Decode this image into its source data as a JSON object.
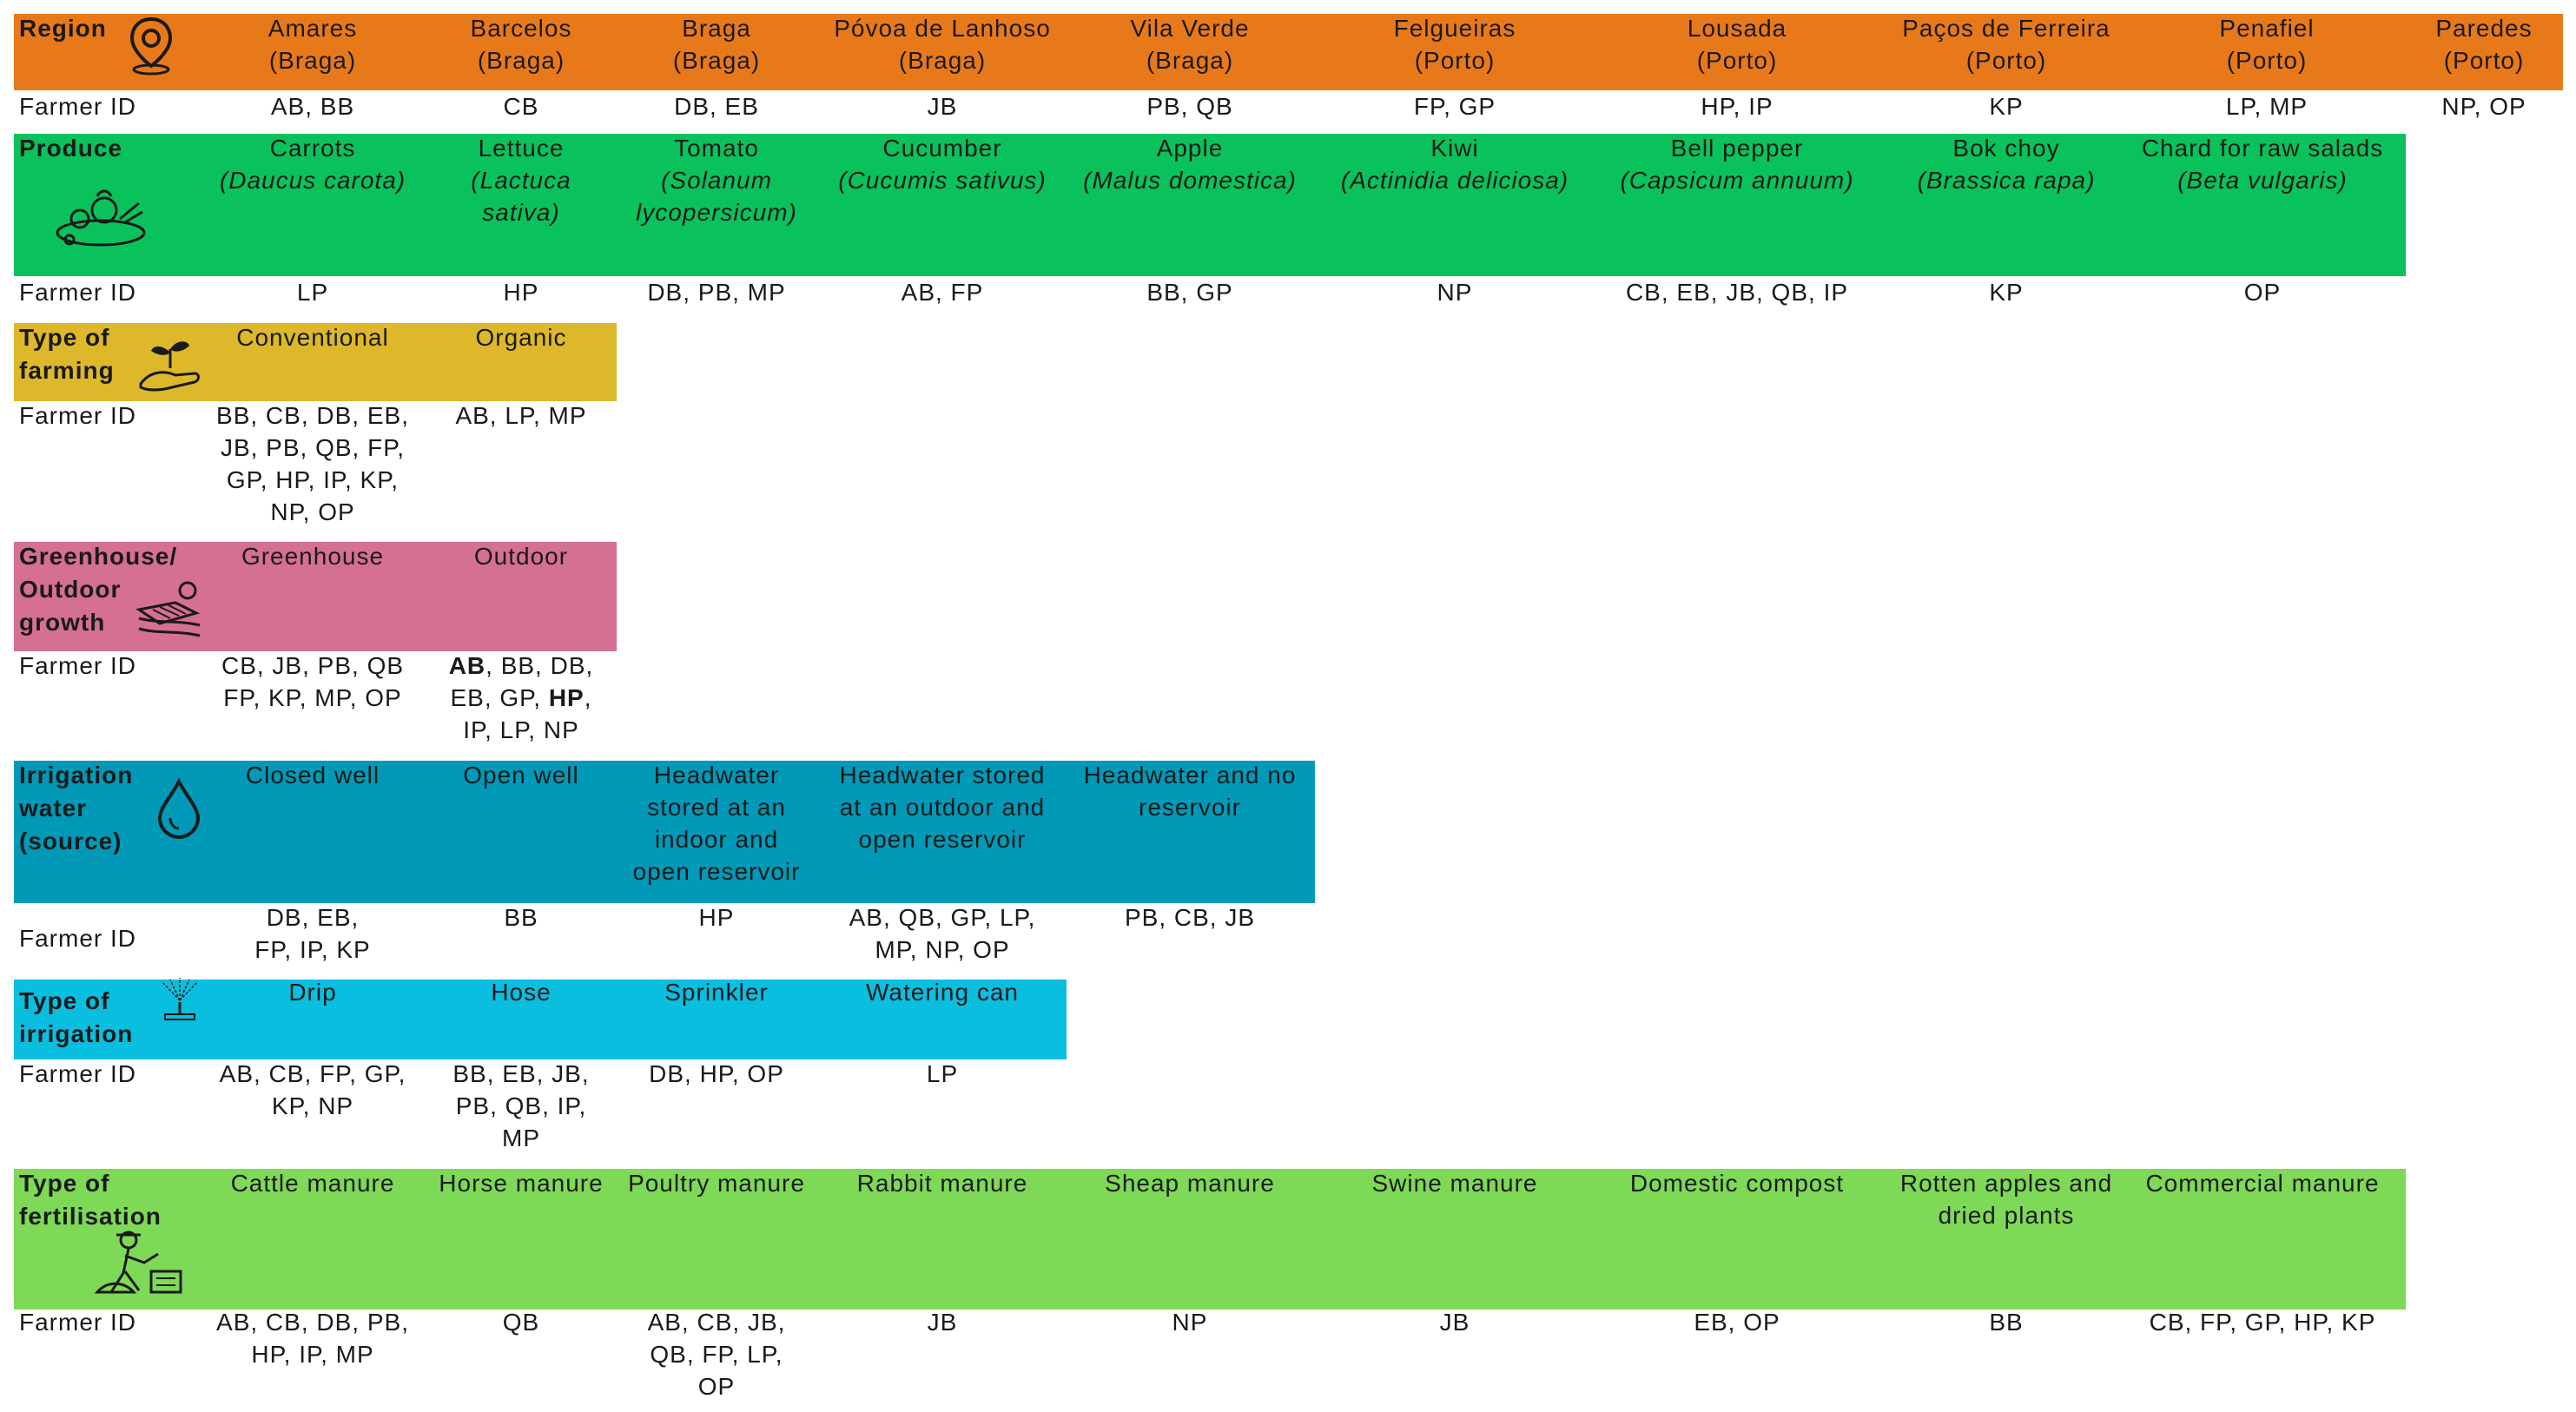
{
  "colors": {
    "region": "#E8791A",
    "produce": "#0AC25C",
    "farming": "#DDB82A",
    "growth": "#D57092",
    "water": "#0099B8",
    "irrigation": "#0ABEE0",
    "fertilisation": "#7ED957"
  },
  "farmer_id_label": "Farmer ID",
  "sections": [
    {
      "key": "region",
      "header": "Region",
      "icon": "location-pin-icon",
      "headers": [
        [
          "Amares",
          "(Braga)"
        ],
        [
          "Barcelos",
          "(Braga)"
        ],
        [
          "Braga",
          "(Braga)"
        ],
        [
          "Póvoa de Lanhoso",
          "(Braga)"
        ],
        [
          "Vila Verde",
          "(Braga)"
        ],
        [
          "Felgueiras",
          "(Porto)"
        ],
        [
          "Lousada",
          "(Porto)"
        ],
        [
          "Paços de Ferreira",
          "(Porto)"
        ],
        [
          "Penafiel",
          "(Porto)"
        ],
        [
          "Paredes",
          "(Porto)"
        ]
      ],
      "farmer_ids": [
        "AB, BB",
        "CB",
        "DB, EB",
        "JB",
        "PB, QB",
        "FP, GP",
        "HP, IP",
        "KP",
        "LP, MP",
        "NP, OP"
      ]
    },
    {
      "key": "produce",
      "header": "Produce",
      "icon": "vegetables-icon",
      "headers": [
        [
          "Carrots",
          "(Daucus carota)"
        ],
        [
          "Lettuce",
          "(Lactuca",
          "sativa)"
        ],
        [
          "Tomato",
          "(Solanum",
          "lycopersicum)"
        ],
        [
          "Cucumber",
          "(Cucumis sativus)"
        ],
        [
          "Apple",
          "(Malus domestica)"
        ],
        [
          "Kiwi",
          "(Actinidia deliciosa)"
        ],
        [
          "Bell pepper",
          "(Capsicum annuum)"
        ],
        [
          "Bok choy",
          "(Brassica rapa)"
        ],
        [
          "Chard for raw salads",
          "(Beta vulgaris)"
        ]
      ],
      "farmer_ids": [
        "LP",
        "HP",
        "DB, PB, MP",
        "AB, FP",
        "BB, GP",
        "NP",
        "CB, EB, JB, QB, IP",
        "KP",
        "OP"
      ]
    },
    {
      "key": "farming",
      "header": [
        "Type of",
        "farming"
      ],
      "icon": "seedling-hand-icon",
      "headers": [
        [
          "Conventional"
        ],
        [
          "Organic"
        ]
      ],
      "farmer_ids": [
        [
          "BB, CB, DB, EB,",
          "JB, PB, QB, FP,",
          "GP, HP, IP, KP,",
          "NP, OP"
        ],
        [
          "AB, LP, MP"
        ]
      ]
    },
    {
      "key": "growth",
      "header": [
        "Greenhouse/",
        "Outdoor",
        "growth"
      ],
      "icon": "field-sun-icon",
      "headers": [
        [
          "Greenhouse"
        ],
        [
          "Outdoor"
        ]
      ],
      "farmer_ids": [
        [
          "CB, JB, PB, QB",
          "FP, KP, MP, OP"
        ],
        [
          "AB",
          ", BB, DB,",
          "EB, GP, ",
          "HP",
          ",",
          "IP, LP, NP"
        ]
      ]
    },
    {
      "key": "water",
      "header": [
        "Irrigation",
        "water",
        "(source)"
      ],
      "icon": "water-drop-icon",
      "headers": [
        [
          "Closed well"
        ],
        [
          "Open well"
        ],
        [
          "Headwater",
          "stored at an",
          "indoor and",
          "open reservoir"
        ],
        [
          "Headwater stored",
          "at an outdoor and",
          "open reservoir"
        ],
        [
          "Headwater and no",
          "reservoir"
        ]
      ],
      "farmer_ids": [
        [
          "DB, EB,",
          "FP, IP, KP"
        ],
        [
          "BB"
        ],
        [
          "HP"
        ],
        [
          "AB, QB, GP, LP,",
          "MP, NP, OP"
        ],
        [
          "PB, CB, JB"
        ]
      ]
    },
    {
      "key": "irrigation",
      "header": [
        "Type of",
        "irrigation"
      ],
      "icon": "sprinkler-icon",
      "headers": [
        [
          "Drip"
        ],
        [
          "Hose"
        ],
        [
          "Sprinkler"
        ],
        [
          "Watering can"
        ]
      ],
      "farmer_ids": [
        [
          "AB, CB, FP, GP,",
          "KP, NP"
        ],
        [
          "BB, EB, JB,",
          "PB, QB, IP,",
          "MP"
        ],
        [
          "DB, HP, OP"
        ],
        [
          "LP"
        ]
      ]
    },
    {
      "key": "fertilisation",
      "header": [
        "Type of",
        "fertilisation"
      ],
      "icon": "farmer-compost-icon",
      "headers": [
        [
          "Cattle manure"
        ],
        [
          "Horse manure"
        ],
        [
          "Poultry manure"
        ],
        [
          "Rabbit manure"
        ],
        [
          "Sheap manure"
        ],
        [
          "Swine manure"
        ],
        [
          "Domestic compost"
        ],
        [
          "Rotten apples and",
          "dried plants"
        ],
        [
          "Commercial manure"
        ]
      ],
      "farmer_ids": [
        [
          "AB, CB, DB, PB,",
          "HP, IP, MP"
        ],
        [
          "QB"
        ],
        [
          "AB, CB, JB,",
          "QB, FP, LP,",
          "OP"
        ],
        [
          "JB"
        ],
        [
          "NP"
        ],
        [
          "JB"
        ],
        [
          "EB, OP"
        ],
        [
          "BB"
        ],
        [
          "CB, FP, GP, HP, KP"
        ]
      ]
    }
  ]
}
